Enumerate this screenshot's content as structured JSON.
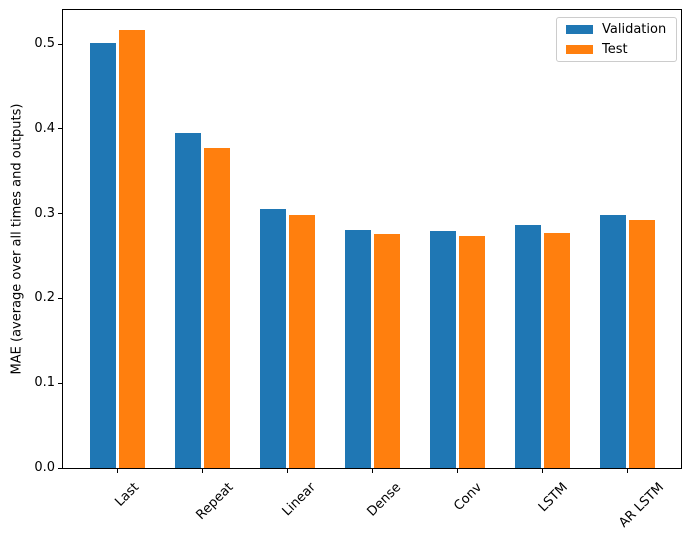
{
  "figure": {
    "ylabel": "MAE (average over all times and outputs)"
  },
  "legend": {
    "items": [
      "Validation",
      "Test"
    ]
  },
  "chart_data": {
    "type": "bar",
    "title": "",
    "xlabel": "",
    "ylabel": "MAE (average over all times and outputs)",
    "categories": [
      "Last",
      "Repeat",
      "Linear",
      "Dense",
      "Conv",
      "LSTM",
      "AR LSTM"
    ],
    "series": [
      {
        "name": "Validation",
        "color": "#1f77b4",
        "values": [
          0.501,
          0.395,
          0.306,
          0.281,
          0.28,
          0.286,
          0.298
        ]
      },
      {
        "name": "Test",
        "color": "#ff7f0e",
        "values": [
          0.516,
          0.377,
          0.298,
          0.276,
          0.274,
          0.277,
          0.292
        ]
      }
    ],
    "ylim": [
      0,
      0.541
    ],
    "yticks": [
      0.0,
      0.1,
      0.2,
      0.3,
      0.4,
      0.5
    ],
    "grid": false,
    "legend_position": "upper right",
    "xtick_rotation_deg": 45
  }
}
